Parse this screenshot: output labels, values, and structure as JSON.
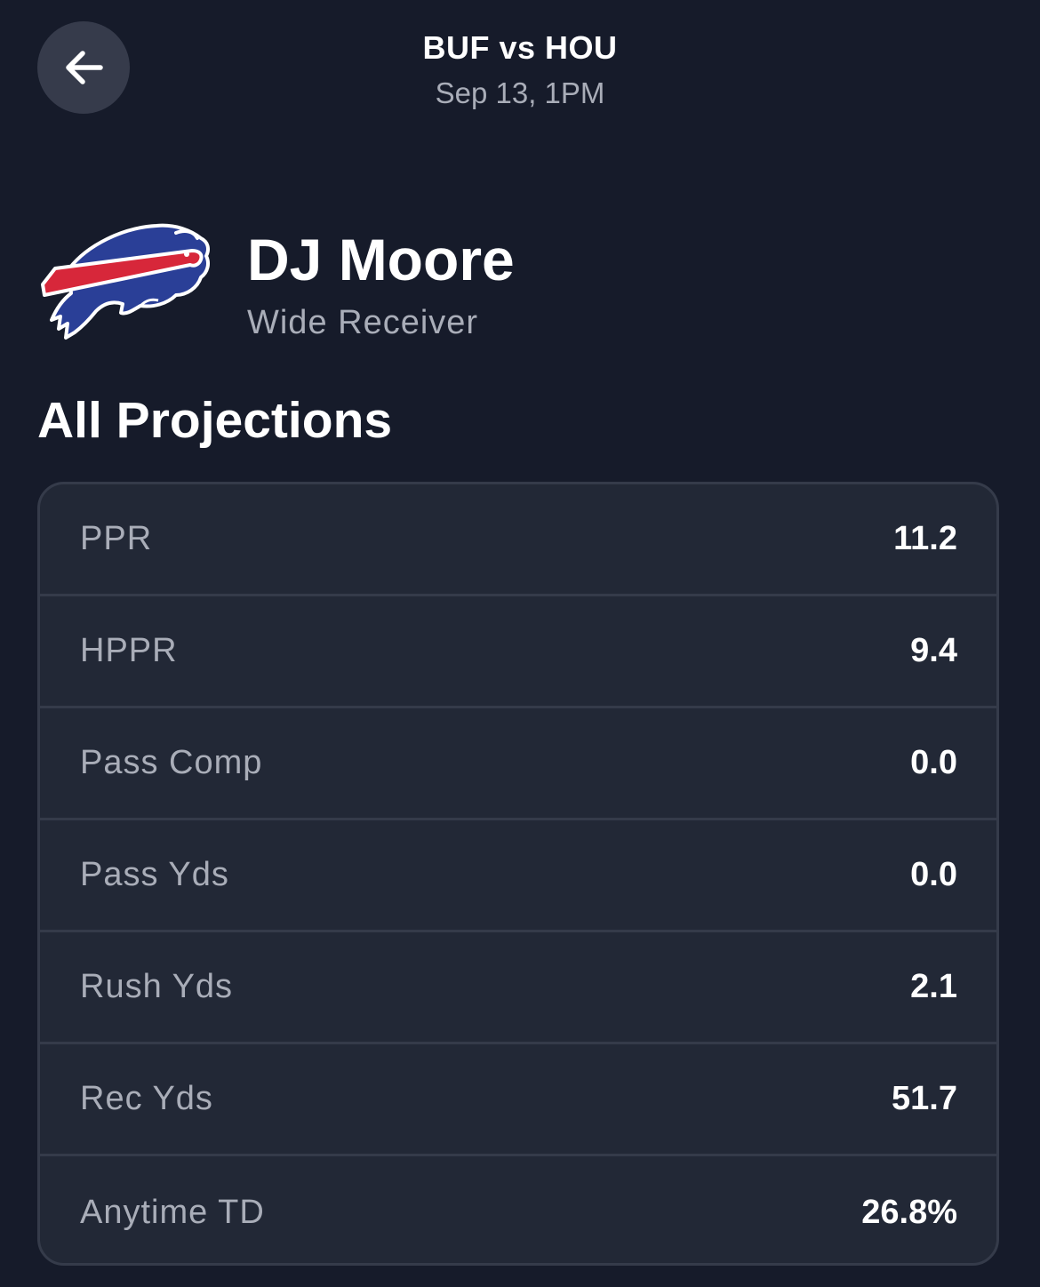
{
  "header": {
    "back_icon": "arrow-left-icon",
    "matchup": "BUF vs HOU",
    "game_time": "Sep 13, 1PM"
  },
  "player": {
    "name": "DJ Moore",
    "position": "Wide Receiver",
    "team_logo": "buffalo-bills-logo",
    "logo_colors": {
      "blue": "#2a3f97",
      "red": "#d7273a",
      "outline": "#ffffff"
    }
  },
  "projections": {
    "title": "All Projections",
    "rows": [
      {
        "label": "PPR",
        "value": "11.2"
      },
      {
        "label": "HPPR",
        "value": "9.4"
      },
      {
        "label": "Pass Comp",
        "value": "0.0"
      },
      {
        "label": "Pass Yds",
        "value": "0.0"
      },
      {
        "label": "Rush Yds",
        "value": "2.1"
      },
      {
        "label": "Rec Yds",
        "value": "51.7"
      },
      {
        "label": "Anytime TD",
        "value": "26.8%"
      }
    ]
  },
  "colors": {
    "background": "#161b2a",
    "card": "#222836",
    "divider": "#353b4a",
    "muted_text": "#a9adb8",
    "back_button": "#363b4b"
  }
}
